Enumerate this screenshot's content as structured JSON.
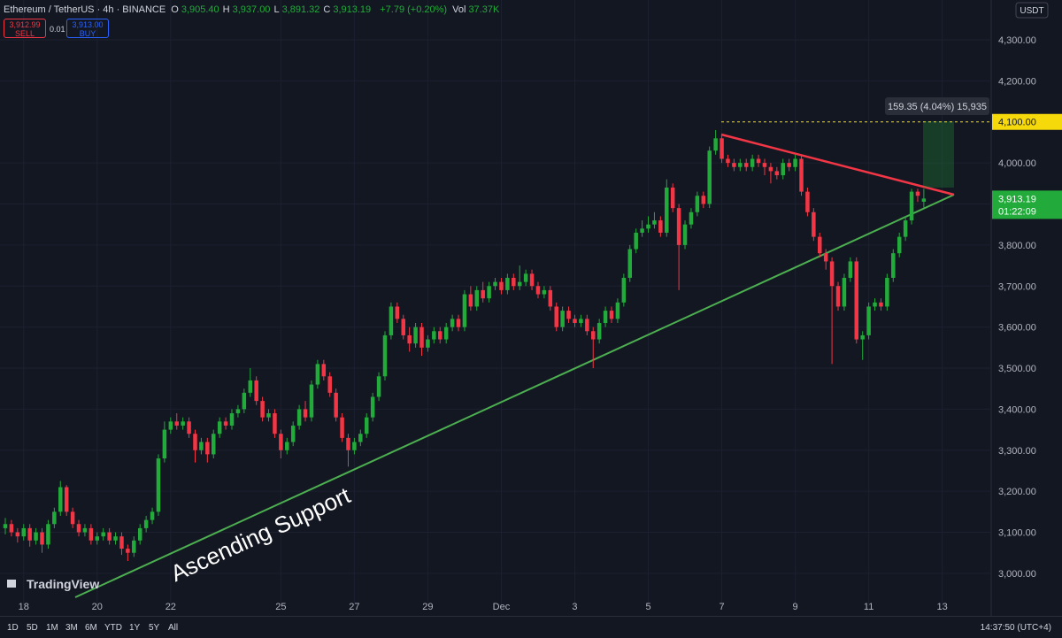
{
  "header": {
    "symbol": "Ethereum / TetherUS · 4h · BINANCE",
    "quote": [
      {
        "key": "O",
        "value": "3,905.40"
      },
      {
        "key": "H",
        "value": "3,937.00"
      },
      {
        "key": "L",
        "value": "3,891.32"
      },
      {
        "key": "C",
        "value": "3,913.19"
      }
    ],
    "change": "+7.79 (+0.20%)",
    "volume_key": "Vol",
    "volume": "37.37K"
  },
  "trade": {
    "sell_price": "3,912.99",
    "sell": "SELL",
    "spread": "0.01",
    "buy_price": "3,913.00",
    "buy": "BUY"
  },
  "currency": "USDT",
  "logo": "TradingView",
  "toolbar": {
    "ranges": [
      "1D",
      "5D",
      "1M",
      "3M",
      "6M",
      "YTD",
      "1Y",
      "5Y",
      "All"
    ],
    "time": "14:37:50 (UTC+4)"
  },
  "chart_data": {
    "type": "candlestick",
    "up_color": "#22ab3b",
    "down_color": "#f23645",
    "grid": true,
    "xlim": [
      -0.867,
      161
    ],
    "ylim": [
      2941.6,
      4343.1
    ],
    "xticks": [
      {
        "value": 3,
        "label": "18"
      },
      {
        "value": 15,
        "label": "20"
      },
      {
        "value": 27,
        "label": "22"
      },
      {
        "value": 45,
        "label": "25"
      },
      {
        "value": 57,
        "label": "27"
      },
      {
        "value": 69,
        "label": "29"
      },
      {
        "value": 81,
        "label": "Dec"
      },
      {
        "value": 93,
        "label": "3"
      },
      {
        "value": 105,
        "label": "5"
      },
      {
        "value": 117,
        "label": "7"
      },
      {
        "value": 129,
        "label": "9"
      },
      {
        "value": 141,
        "label": "11"
      },
      {
        "value": 153,
        "label": "13"
      }
    ],
    "yticks": [
      {
        "value": 3000,
        "label": "3,000.00"
      },
      {
        "value": 3100,
        "label": "3,100.00"
      },
      {
        "value": 3200,
        "label": "3,200.00"
      },
      {
        "value": 3300,
        "label": "3,300.00"
      },
      {
        "value": 3400,
        "label": "3,400.00"
      },
      {
        "value": 3500,
        "label": "3,500.00"
      },
      {
        "value": 3600,
        "label": "3,600.00"
      },
      {
        "value": 3700,
        "label": "3,700.00"
      },
      {
        "value": 3800,
        "label": "3,800.00"
      },
      {
        "value": 3900,
        "label": "3,900.00"
      },
      {
        "value": 4000,
        "label": "4,000.00"
      },
      {
        "value": 4200,
        "label": "4,200.00"
      },
      {
        "value": 4300,
        "label": "4,300.00"
      }
    ],
    "price_tags": [
      {
        "value": 4100,
        "label": "4,100.00"
      },
      {
        "value": 3913.19,
        "label": "3,913.19",
        "countdown": "01:22:09"
      }
    ],
    "annotations": {
      "trendline": "Ascending Support",
      "measure": "159.35 (4.04%) 15,935"
    },
    "ohlc": [
      [
        3110,
        3135,
        3095,
        3120
      ],
      [
        3120,
        3130,
        3090,
        3100
      ],
      [
        3100,
        3110,
        3075,
        3090
      ],
      [
        3090,
        3120,
        3080,
        3110
      ],
      [
        3110,
        3120,
        3065,
        3080
      ],
      [
        3080,
        3110,
        3070,
        3100
      ],
      [
        3100,
        3110,
        3050,
        3070
      ],
      [
        3070,
        3130,
        3060,
        3120
      ],
      [
        3120,
        3160,
        3110,
        3150
      ],
      [
        3150,
        3225,
        3140,
        3210
      ],
      [
        3210,
        3215,
        3140,
        3150
      ],
      [
        3150,
        3160,
        3110,
        3120
      ],
      [
        3120,
        3130,
        3090,
        3100
      ],
      [
        3100,
        3120,
        3090,
        3110
      ],
      [
        3110,
        3120,
        3070,
        3080
      ],
      [
        3080,
        3100,
        3070,
        3090
      ],
      [
        3090,
        3110,
        3080,
        3100
      ],
      [
        3100,
        3110,
        3070,
        3080
      ],
      [
        3080,
        3100,
        3070,
        3090
      ],
      [
        3090,
        3100,
        3045,
        3060
      ],
      [
        3060,
        3070,
        3030,
        3050
      ],
      [
        3050,
        3090,
        3040,
        3080
      ],
      [
        3080,
        3120,
        3070,
        3110
      ],
      [
        3110,
        3140,
        3100,
        3130
      ],
      [
        3130,
        3160,
        3120,
        3150
      ],
      [
        3150,
        3290,
        3140,
        3280
      ],
      [
        3280,
        3370,
        3270,
        3350
      ],
      [
        3350,
        3380,
        3340,
        3370
      ],
      [
        3370,
        3390,
        3350,
        3360
      ],
      [
        3360,
        3380,
        3350,
        3370
      ],
      [
        3370,
        3380,
        3330,
        3340
      ],
      [
        3340,
        3350,
        3270,
        3300
      ],
      [
        3300,
        3330,
        3290,
        3320
      ],
      [
        3320,
        3330,
        3270,
        3290
      ],
      [
        3290,
        3350,
        3280,
        3340
      ],
      [
        3340,
        3380,
        3330,
        3370
      ],
      [
        3370,
        3380,
        3350,
        3360
      ],
      [
        3360,
        3400,
        3350,
        3390
      ],
      [
        3390,
        3410,
        3380,
        3400
      ],
      [
        3400,
        3450,
        3390,
        3440
      ],
      [
        3440,
        3500,
        3430,
        3470
      ],
      [
        3470,
        3480,
        3410,
        3420
      ],
      [
        3420,
        3430,
        3370,
        3380
      ],
      [
        3380,
        3400,
        3370,
        3390
      ],
      [
        3390,
        3400,
        3330,
        3340
      ],
      [
        3340,
        3350,
        3280,
        3300
      ],
      [
        3300,
        3330,
        3290,
        3320
      ],
      [
        3320,
        3370,
        3310,
        3360
      ],
      [
        3360,
        3410,
        3350,
        3400
      ],
      [
        3400,
        3420,
        3370,
        3380
      ],
      [
        3380,
        3470,
        3370,
        3460
      ],
      [
        3460,
        3520,
        3450,
        3510
      ],
      [
        3510,
        3520,
        3470,
        3480
      ],
      [
        3480,
        3490,
        3430,
        3440
      ],
      [
        3440,
        3450,
        3370,
        3380
      ],
      [
        3380,
        3390,
        3320,
        3330
      ],
      [
        3330,
        3340,
        3260,
        3300
      ],
      [
        3300,
        3330,
        3290,
        3320
      ],
      [
        3320,
        3350,
        3310,
        3340
      ],
      [
        3340,
        3390,
        3330,
        3380
      ],
      [
        3380,
        3440,
        3370,
        3430
      ],
      [
        3430,
        3490,
        3420,
        3480
      ],
      [
        3480,
        3590,
        3470,
        3580
      ],
      [
        3580,
        3660,
        3570,
        3650
      ],
      [
        3650,
        3660,
        3610,
        3620
      ],
      [
        3620,
        3630,
        3570,
        3580
      ],
      [
        3580,
        3600,
        3540,
        3560
      ],
      [
        3560,
        3610,
        3550,
        3600
      ],
      [
        3600,
        3610,
        3530,
        3550
      ],
      [
        3550,
        3580,
        3540,
        3570
      ],
      [
        3570,
        3600,
        3560,
        3590
      ],
      [
        3590,
        3600,
        3560,
        3570
      ],
      [
        3570,
        3610,
        3560,
        3600
      ],
      [
        3600,
        3630,
        3590,
        3620
      ],
      [
        3620,
        3630,
        3590,
        3600
      ],
      [
        3600,
        3690,
        3590,
        3680
      ],
      [
        3680,
        3700,
        3640,
        3650
      ],
      [
        3650,
        3700,
        3640,
        3690
      ],
      [
        3690,
        3710,
        3660,
        3670
      ],
      [
        3670,
        3710,
        3660,
        3700
      ],
      [
        3700,
        3720,
        3690,
        3710
      ],
      [
        3710,
        3720,
        3680,
        3690
      ],
      [
        3690,
        3730,
        3680,
        3720
      ],
      [
        3720,
        3730,
        3690,
        3700
      ],
      [
        3700,
        3750,
        3690,
        3710
      ],
      [
        3710,
        3740,
        3700,
        3730
      ],
      [
        3730,
        3740,
        3690,
        3700
      ],
      [
        3700,
        3710,
        3670,
        3680
      ],
      [
        3680,
        3700,
        3670,
        3690
      ],
      [
        3690,
        3700,
        3640,
        3650
      ],
      [
        3650,
        3660,
        3590,
        3600
      ],
      [
        3600,
        3650,
        3590,
        3640
      ],
      [
        3640,
        3650,
        3610,
        3620
      ],
      [
        3620,
        3630,
        3600,
        3610
      ],
      [
        3610,
        3630,
        3600,
        3620
      ],
      [
        3620,
        3630,
        3580,
        3590
      ],
      [
        3590,
        3600,
        3500,
        3570
      ],
      [
        3570,
        3620,
        3560,
        3610
      ],
      [
        3610,
        3650,
        3600,
        3640
      ],
      [
        3640,
        3650,
        3610,
        3620
      ],
      [
        3620,
        3670,
        3610,
        3660
      ],
      [
        3660,
        3730,
        3650,
        3720
      ],
      [
        3720,
        3800,
        3710,
        3790
      ],
      [
        3790,
        3840,
        3780,
        3830
      ],
      [
        3830,
        3860,
        3820,
        3840
      ],
      [
        3840,
        3870,
        3830,
        3850
      ],
      [
        3850,
        3880,
        3840,
        3860
      ],
      [
        3860,
        3870,
        3820,
        3830
      ],
      [
        3830,
        3960,
        3820,
        3940
      ],
      [
        3940,
        3950,
        3880,
        3890
      ],
      [
        3890,
        3900,
        3690,
        3800
      ],
      [
        3800,
        3860,
        3790,
        3850
      ],
      [
        3850,
        3890,
        3840,
        3880
      ],
      [
        3880,
        3930,
        3870,
        3920
      ],
      [
        3920,
        3930,
        3890,
        3900
      ],
      [
        3900,
        4040,
        3890,
        4030
      ],
      [
        4030,
        4080,
        4020,
        4060
      ],
      [
        4060,
        4070,
        4000,
        4010
      ],
      [
        4010,
        4020,
        3990,
        4000
      ],
      [
        4000,
        4010,
        3980,
        3990
      ],
      [
        3990,
        4010,
        3980,
        4000
      ],
      [
        4000,
        4010,
        3980,
        3990
      ],
      [
        3990,
        4020,
        3980,
        4010
      ],
      [
        4010,
        4020,
        3990,
        4000
      ],
      [
        4000,
        4010,
        3970,
        3990
      ],
      [
        3990,
        4000,
        3950,
        3980
      ],
      [
        3980,
        3990,
        3960,
        3970
      ],
      [
        3970,
        4010,
        3960,
        4000
      ],
      [
        4000,
        4010,
        3980,
        3990
      ],
      [
        3990,
        4020,
        3980,
        4010
      ],
      [
        4010,
        4020,
        3920,
        3930
      ],
      [
        3930,
        3940,
        3870,
        3880
      ],
      [
        3880,
        3890,
        3810,
        3820
      ],
      [
        3820,
        3830,
        3770,
        3780
      ],
      [
        3780,
        3790,
        3740,
        3760
      ],
      [
        3760,
        3770,
        3510,
        3700
      ],
      [
        3700,
        3710,
        3640,
        3650
      ],
      [
        3650,
        3730,
        3640,
        3720
      ],
      [
        3720,
        3770,
        3710,
        3760
      ],
      [
        3760,
        3770,
        3560,
        3570
      ],
      [
        3570,
        3590,
        3520,
        3580
      ],
      [
        3580,
        3660,
        3570,
        3650
      ],
      [
        3650,
        3670,
        3640,
        3660
      ],
      [
        3660,
        3670,
        3640,
        3650
      ],
      [
        3650,
        3730,
        3640,
        3720
      ],
      [
        3720,
        3790,
        3710,
        3780
      ],
      [
        3780,
        3830,
        3770,
        3820
      ],
      [
        3820,
        3870,
        3810,
        3860
      ],
      [
        3860,
        3937,
        3850,
        3930
      ],
      [
        3930,
        3937,
        3905,
        3920
      ],
      [
        3905.4,
        3937,
        3891.32,
        3913.19
      ]
    ]
  }
}
